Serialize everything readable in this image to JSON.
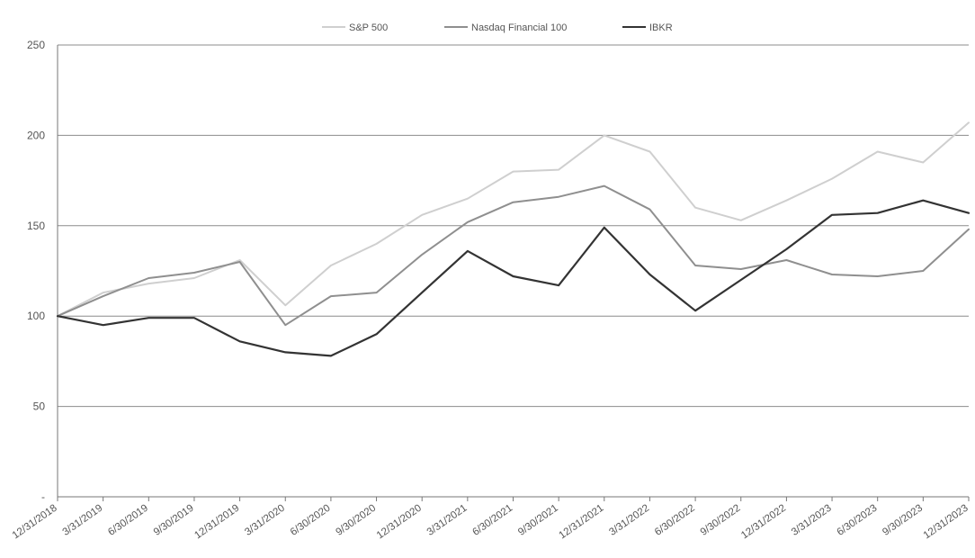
{
  "chart_data": {
    "type": "line",
    "title": "",
    "xlabel": "",
    "ylabel": "",
    "ylim": [
      0,
      250
    ],
    "y_ticks": [
      {
        "value": 0,
        "label": "-"
      },
      {
        "value": 50,
        "label": "50"
      },
      {
        "value": 100,
        "label": "100"
      },
      {
        "value": 150,
        "label": "150"
      },
      {
        "value": 200,
        "label": "200"
      },
      {
        "value": 250,
        "label": "250"
      }
    ],
    "grid": true,
    "legend_position": "top-center",
    "categories": [
      "12/31/2018",
      "3/31/2019",
      "6/30/2019",
      "9/30/2019",
      "12/31/2019",
      "3/31/2020",
      "6/30/2020",
      "9/30/2020",
      "12/31/2020",
      "3/31/2021",
      "6/30/2021",
      "9/30/2021",
      "12/31/2021",
      "3/31/2022",
      "6/30/2022",
      "9/30/2022",
      "12/31/2022",
      "3/31/2023",
      "6/30/2023",
      "9/30/2023",
      "12/31/2023"
    ],
    "series": [
      {
        "name": "S&P 500",
        "color": "#cfcfcf",
        "values": [
          100,
          113,
          118,
          121,
          131,
          106,
          128,
          140,
          156,
          165,
          180,
          181,
          200,
          191,
          160,
          153,
          164,
          176,
          191,
          185,
          207
        ]
      },
      {
        "name": "Nasdaq Financial 100",
        "color": "#8f8f8f",
        "values": [
          100,
          111,
          121,
          124,
          130,
          95,
          111,
          113,
          134,
          152,
          163,
          166,
          172,
          159,
          128,
          126,
          131,
          123,
          122,
          125,
          148
        ]
      },
      {
        "name": "IBKR",
        "color": "#333333",
        "values": [
          100,
          95,
          99,
          99,
          86,
          80,
          78,
          90,
          113,
          136,
          122,
          117,
          149,
          123,
          103,
          120,
          137,
          156,
          157,
          164,
          157
        ]
      }
    ]
  }
}
